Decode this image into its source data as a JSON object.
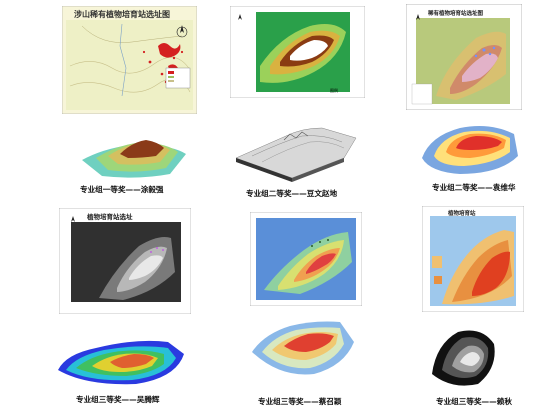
{
  "panels": [
    {
      "id": "p1",
      "title": "涉山稀有植物培育站选址图",
      "caption": "",
      "colors": {
        "bg": "#f2f0c8",
        "red": "#d42020"
      }
    },
    {
      "id": "p2",
      "title": "",
      "caption": "",
      "legend": "图例",
      "colors": {
        "bg": "#ffffff"
      }
    },
    {
      "id": "p3",
      "title": "稀有植物培育站选址图",
      "caption": "",
      "colors": {
        "bg": "#ffffff"
      }
    },
    {
      "id": "p4",
      "title": "",
      "caption": "专业组一等奖——涂毅强"
    },
    {
      "id": "p5",
      "title": "",
      "caption": "专业组二等奖——豆文赵地"
    },
    {
      "id": "p6",
      "title": "",
      "caption": "专业组二等奖——袁维华"
    },
    {
      "id": "p7",
      "title": "植物培育站选址",
      "caption": ""
    },
    {
      "id": "p8",
      "title": "",
      "caption": ""
    },
    {
      "id": "p9",
      "title": "植物培育站",
      "caption": ""
    },
    {
      "id": "p10",
      "title": "",
      "caption": "专业组三等奖——吴腾辉"
    },
    {
      "id": "p11",
      "title": "",
      "caption": "专业组三等奖——蔡召颖"
    },
    {
      "id": "p12",
      "title": "",
      "caption": "专业组三等奖——赖秋"
    }
  ]
}
